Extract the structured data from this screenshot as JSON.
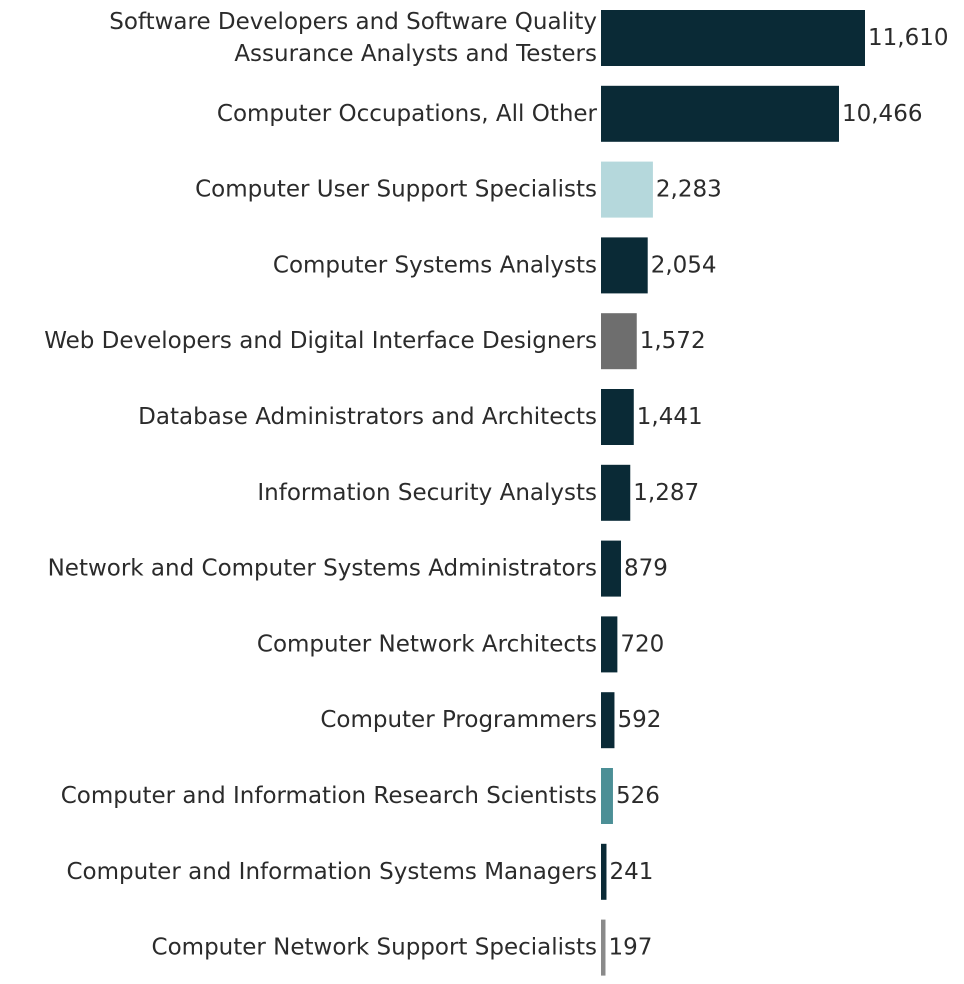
{
  "chart_data": {
    "type": "bar",
    "orientation": "horizontal",
    "title": "",
    "xlabel": "",
    "ylabel": "",
    "categories": [
      [
        "Software Developers and Software Quality",
        "Assurance Analysts and Testers"
      ],
      [
        "Computer Occupations, All Other"
      ],
      [
        "Computer User Support Specialists"
      ],
      [
        "Computer Systems Analysts"
      ],
      [
        "Web Developers and Digital Interface Designers"
      ],
      [
        "Database Administrators and Architects"
      ],
      [
        "Information Security Analysts"
      ],
      [
        "Network and Computer Systems Administrators"
      ],
      [
        "Computer Network Architects"
      ],
      [
        "Computer Programmers"
      ],
      [
        "Computer and Information Research Scientists"
      ],
      [
        "Computer and Information Systems Managers"
      ],
      [
        "Computer Network Support Specialists"
      ]
    ],
    "values": [
      11610,
      10466,
      2283,
      2054,
      1572,
      1441,
      1287,
      879,
      720,
      592,
      526,
      241,
      197
    ],
    "value_labels": [
      "11,610",
      "10,466",
      "2,283",
      "2,054",
      "1,572",
      "1,441",
      "1,287",
      "879",
      "720",
      "592",
      "526",
      "241",
      "197"
    ],
    "colors": [
      "#0a2a36",
      "#0a2a36",
      "#b5d8dc",
      "#0a2a36",
      "#6e6e6e",
      "#0a2a36",
      "#0a2a36",
      "#0a2a36",
      "#0a2a36",
      "#0a2a36",
      "#4c8f96",
      "#0a2a36",
      "#8a8a8a"
    ],
    "xlim": [
      0,
      11610
    ],
    "grid": false,
    "legend": "none"
  }
}
